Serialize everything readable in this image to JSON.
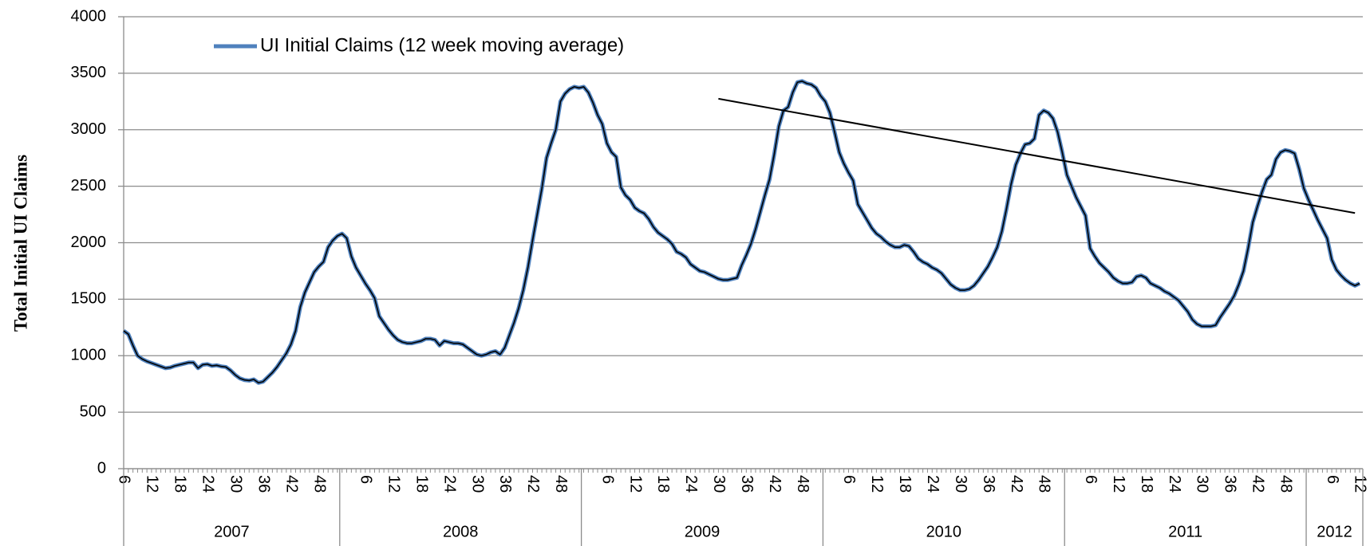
{
  "chart_data": {
    "type": "line",
    "y_label": "Total Initial UI Claims",
    "categories": [
      "6",
      null,
      null,
      null,
      null,
      null,
      "12",
      null,
      null,
      null,
      null,
      null,
      "18",
      null,
      null,
      null,
      null,
      null,
      "24",
      null,
      null,
      null,
      null,
      null,
      "30",
      null,
      null,
      null,
      null,
      null,
      "36",
      null,
      null,
      null,
      null,
      null,
      "42",
      null,
      null,
      null,
      null,
      null,
      "48",
      null,
      null,
      null,
      null,
      null,
      null,
      null,
      null,
      null,
      "6",
      null,
      null,
      null,
      null,
      null,
      "12",
      null,
      null,
      null,
      null,
      null,
      "18",
      null,
      null,
      null,
      null,
      null,
      "24",
      null,
      null,
      null,
      null,
      null,
      "30",
      null,
      null,
      null,
      null,
      null,
      "36",
      null,
      null,
      null,
      null,
      null,
      "42",
      null,
      null,
      null,
      null,
      null,
      "48",
      null,
      null,
      null,
      null,
      null,
      null,
      null,
      null,
      null,
      "6",
      null,
      null,
      null,
      null,
      null,
      "12",
      null,
      null,
      null,
      null,
      null,
      "18",
      null,
      null,
      null,
      null,
      null,
      "24",
      null,
      null,
      null,
      null,
      null,
      "30",
      null,
      null,
      null,
      null,
      null,
      "36",
      null,
      null,
      null,
      null,
      null,
      "42",
      null,
      null,
      null,
      null,
      null,
      "48",
      null,
      null,
      null,
      null,
      null,
      null,
      null,
      null,
      null,
      "6",
      null,
      null,
      null,
      null,
      null,
      "12",
      null,
      null,
      null,
      null,
      null,
      "18",
      null,
      null,
      null,
      null,
      null,
      "24",
      null,
      null,
      null,
      null,
      null,
      "30",
      null,
      null,
      null,
      null,
      null,
      "36",
      null,
      null,
      null,
      null,
      null,
      "42",
      null,
      null,
      null,
      null,
      null,
      "48",
      null,
      null,
      null,
      null,
      null,
      null,
      null,
      null,
      null,
      "6",
      null,
      null,
      null,
      null,
      null,
      "12",
      null,
      null,
      null,
      null,
      null,
      "18",
      null,
      null,
      null,
      null,
      null,
      "24",
      null,
      null,
      null,
      null,
      null,
      "30",
      null,
      null,
      null,
      null,
      null,
      "36",
      null,
      null,
      null,
      null,
      null,
      "42",
      null,
      null,
      null,
      null,
      null,
      "48",
      null,
      null,
      null,
      null,
      null,
      null,
      null,
      null,
      null,
      "6",
      null,
      null,
      null,
      null,
      null,
      "12"
    ],
    "category_groups": [
      {
        "label": "2007",
        "span": 47
      },
      {
        "label": "2008",
        "span": 52
      },
      {
        "label": "2009",
        "span": 52
      },
      {
        "label": "2010",
        "span": 52
      },
      {
        "label": "2011",
        "span": 52
      },
      {
        "label": "2012",
        "span": 12
      }
    ],
    "series": [
      {
        "name": "UI Initial Claims (12 week moving average)",
        "color": "#4f81bd",
        "values": [
          1220,
          1190,
          1090,
          1000,
          970,
          950,
          935,
          920,
          905,
          890,
          895,
          910,
          920,
          930,
          940,
          940,
          890,
          920,
          925,
          910,
          915,
          905,
          900,
          870,
          830,
          800,
          785,
          780,
          790,
          760,
          770,
          810,
          850,
          900,
          960,
          1020,
          1100,
          1220,
          1430,
          1560,
          1650,
          1740,
          1790,
          1830,
          1960,
          2020,
          2060,
          2080,
          2040,
          1880,
          1780,
          1710,
          1640,
          1580,
          1510,
          1350,
          1290,
          1230,
          1180,
          1140,
          1120,
          1110,
          1110,
          1120,
          1130,
          1150,
          1150,
          1140,
          1090,
          1130,
          1120,
          1110,
          1110,
          1100,
          1070,
          1040,
          1010,
          1000,
          1010,
          1030,
          1040,
          1010,
          1070,
          1180,
          1290,
          1420,
          1580,
          1780,
          2020,
          2250,
          2480,
          2750,
          2880,
          3000,
          3250,
          3320,
          3360,
          3380,
          3370,
          3380,
          3330,
          3240,
          3130,
          3050,
          2880,
          2800,
          2760,
          2490,
          2420,
          2380,
          2310,
          2280,
          2260,
          2210,
          2140,
          2090,
          2060,
          2030,
          1990,
          1920,
          1900,
          1870,
          1810,
          1780,
          1750,
          1740,
          1720,
          1700,
          1680,
          1670,
          1670,
          1680,
          1690,
          1800,
          1890,
          1990,
          2120,
          2270,
          2420,
          2560,
          2780,
          3030,
          3170,
          3200,
          3330,
          3420,
          3430,
          3410,
          3400,
          3370,
          3300,
          3250,
          3150,
          2980,
          2800,
          2700,
          2620,
          2550,
          2340,
          2270,
          2200,
          2130,
          2080,
          2050,
          2010,
          1980,
          1960,
          1960,
          1980,
          1970,
          1920,
          1860,
          1830,
          1810,
          1780,
          1760,
          1730,
          1680,
          1630,
          1600,
          1580,
          1580,
          1590,
          1620,
          1670,
          1730,
          1790,
          1870,
          1960,
          2100,
          2300,
          2520,
          2690,
          2790,
          2870,
          2880,
          2920,
          3130,
          3170,
          3150,
          3100,
          2980,
          2800,
          2600,
          2500,
          2400,
          2320,
          2240,
          1950,
          1880,
          1820,
          1780,
          1740,
          1690,
          1660,
          1640,
          1640,
          1650,
          1700,
          1710,
          1690,
          1640,
          1620,
          1600,
          1570,
          1550,
          1520,
          1490,
          1440,
          1390,
          1320,
          1280,
          1260,
          1260,
          1260,
          1270,
          1340,
          1400,
          1460,
          1530,
          1630,
          1750,
          1950,
          2180,
          2320,
          2450,
          2560,
          2600,
          2740,
          2800,
          2820,
          2810,
          2790,
          2650,
          2480,
          2380,
          2290,
          2200,
          2120,
          2040,
          1850,
          1760,
          1710,
          1670,
          1640,
          1620,
          1640
        ]
      }
    ],
    "trendline": {
      "x": [
        128,
        265
      ],
      "y": [
        3274,
        2263
      ],
      "color": "#000000"
    },
    "ylim": [
      0,
      4000
    ],
    "yticks": [
      0,
      500,
      1000,
      1500,
      2000,
      2500,
      3000,
      3500,
      4000
    ],
    "grid": true,
    "legend": "top-left"
  }
}
